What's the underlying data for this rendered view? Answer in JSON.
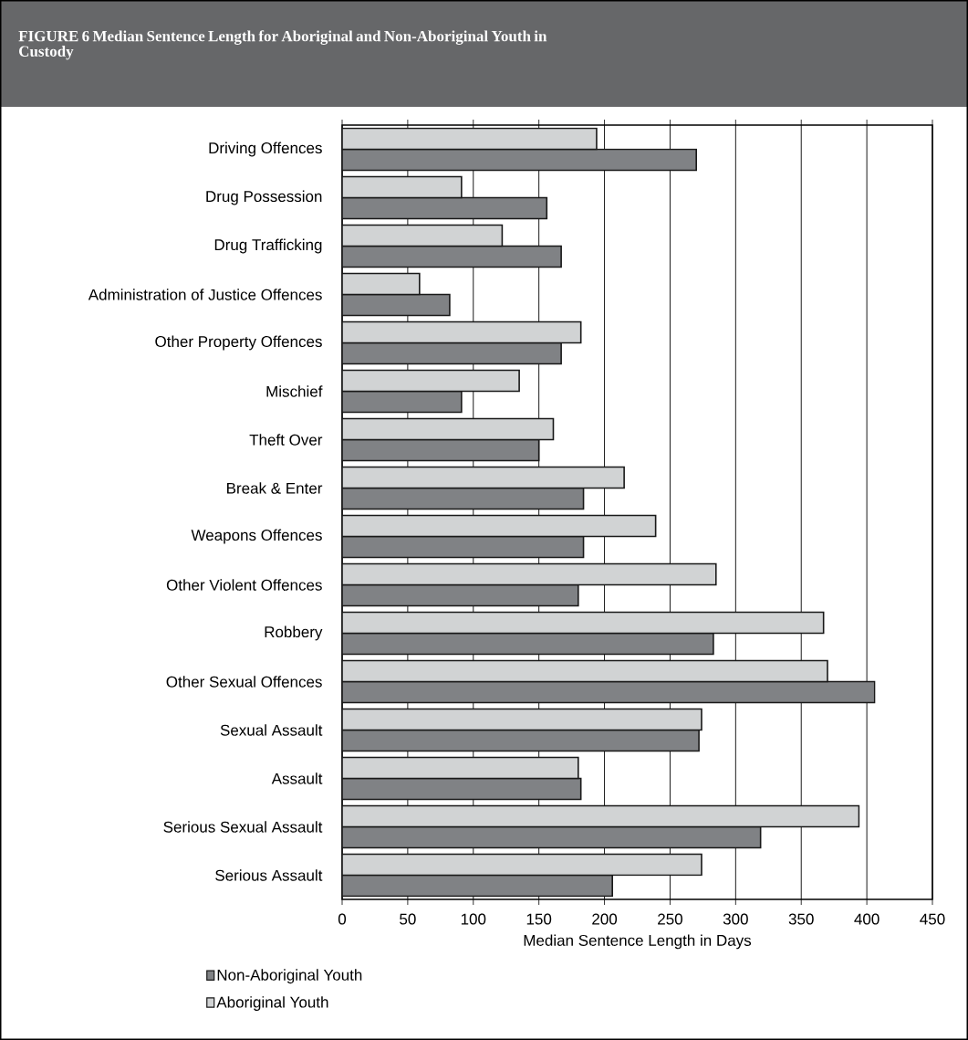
{
  "chart_data": {
    "type": "bar",
    "orientation": "horizontal",
    "title": "FIGURE 6 Median Sentence Length for Aboriginal and Non-Aboriginal Youth in Custody",
    "xlabel": "Median Sentence Length in Days",
    "categories": [
      "Driving Offences",
      "Drug Possession",
      "Drug Trafficking",
      "Administration of Justice Offences",
      "Other Property Offences",
      "Mischief",
      "Theft Over",
      "Break & Enter",
      "Weapons Offences",
      "Other Violent Offences",
      "Robbery",
      "Other Sexual Offences",
      "Sexual Assault",
      "Assault",
      "Serious Sexual Assault",
      "Serious Assault"
    ],
    "series": [
      {
        "name": "Non-Aboriginal Youth",
        "color": "#808285",
        "values": [
          270,
          156,
          167,
          82,
          167,
          91,
          150,
          184,
          184,
          180,
          283,
          406,
          272,
          182,
          319,
          206
        ]
      },
      {
        "name": "Aboriginal Youth",
        "color": "#d1d3d4",
        "values": [
          194,
          91,
          122,
          59,
          182,
          135,
          161,
          215,
          239,
          285,
          367,
          370,
          274,
          180,
          394,
          274
        ]
      }
    ],
    "xlim": [
      0,
      450
    ],
    "xticks": [
      0,
      50,
      100,
      150,
      200,
      250,
      300,
      350,
      400,
      450
    ],
    "grid": "x",
    "legend": "bottom left"
  }
}
